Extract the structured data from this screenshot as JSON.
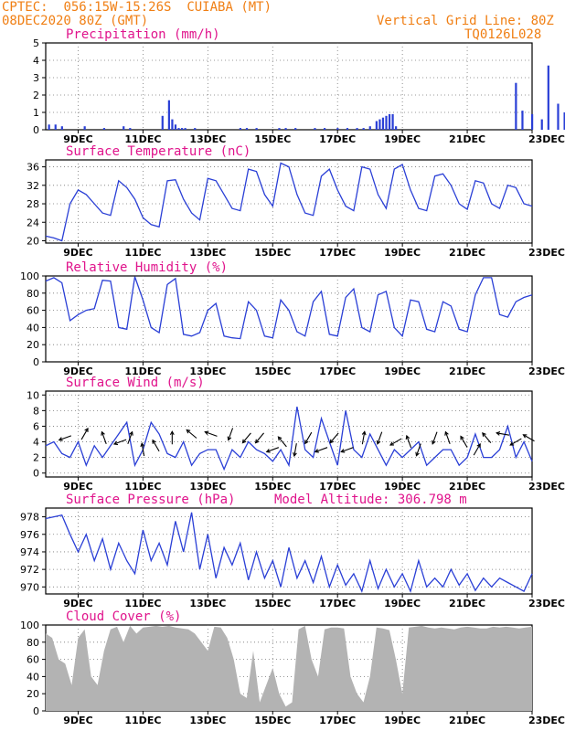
{
  "header": {
    "source": "CPTEC:",
    "location_coords": "056:15W-15:26S",
    "location_name": "CUIABA (MT)",
    "init_time": "08DEC2020 80Z (GMT)",
    "grid_note": "Vertical Grid Line: 80Z",
    "model_id": "TQ0126L028"
  },
  "colors": {
    "header": "#f07f14",
    "title": "#e0148c",
    "line": "#2a3fd6",
    "cloud": "#b3b3b3"
  },
  "chart_data": [
    {
      "id": "precip",
      "type": "bar",
      "title": "Precipitation (mm/h)",
      "ylim": [
        0,
        5
      ],
      "yticks": [
        "0",
        "1",
        "2",
        "3",
        "4",
        "5"
      ],
      "xticks": [
        "9DEC",
        "11DEC",
        "13DEC",
        "15DEC",
        "17DEC",
        "19DEC",
        "21DEC",
        "23DEC"
      ],
      "x": [
        0.1,
        0.3,
        0.5,
        1.2,
        1.8,
        2.4,
        2.6,
        3.6,
        3.8,
        3.9,
        4.0,
        4.1,
        4.2,
        4.3,
        4.6,
        6.0,
        6.2,
        6.5,
        7.2,
        7.4,
        7.7,
        8.3,
        8.6,
        9.0,
        9.3,
        9.6,
        9.8,
        10.0,
        10.2,
        10.3,
        10.4,
        10.5,
        10.6,
        10.7,
        10.8,
        14.5,
        14.7,
        15.0,
        15.3,
        15.5,
        15.8,
        16.0,
        16.2,
        16.5,
        16.8,
        17.0,
        17.2,
        17.5,
        17.8,
        18.0,
        18.2,
        18.5,
        18.8,
        19.2
      ],
      "values": [
        0.3,
        0.3,
        0.2,
        0.2,
        0.1,
        0.2,
        0.1,
        0.8,
        1.7,
        0.6,
        0.3,
        0.1,
        0.1,
        0.1,
        0.1,
        0.1,
        0.1,
        0.1,
        0.1,
        0.1,
        0.1,
        0.1,
        0.1,
        0.1,
        0.1,
        0.1,
        0.1,
        0.2,
        0.5,
        0.6,
        0.7,
        0.8,
        0.9,
        0.9,
        0.2,
        2.7,
        1.1,
        0.9,
        0.6,
        3.7,
        1.5,
        1.0,
        0.2,
        1.1,
        0.5,
        0.5,
        1.6,
        0.2,
        0.6,
        1.8,
        1.7,
        0.9,
        0.3,
        0.3
      ]
    },
    {
      "id": "temp",
      "type": "line",
      "title": "Surface Temperature (nC)",
      "ylim": [
        19.5,
        37.5
      ],
      "yticks": [
        "20",
        "24",
        "28",
        "32",
        "36"
      ],
      "xticks": [
        "9DEC",
        "11DEC",
        "13DEC",
        "15DEC",
        "17DEC",
        "19DEC",
        "21DEC",
        "23DEC"
      ],
      "x": [
        0,
        0.25,
        0.5,
        0.75,
        1.0,
        1.25,
        1.5,
        1.75,
        2.0,
        2.25,
        2.5,
        2.75,
        3.0,
        3.25,
        3.5,
        3.75,
        4.0,
        4.25,
        4.5,
        4.75,
        5.0,
        5.25,
        5.5,
        5.75,
        6.0,
        6.25,
        6.5,
        6.75,
        7.0,
        7.25,
        7.5,
        7.75,
        8.0,
        8.25,
        8.5,
        8.75,
        9.0,
        9.25,
        9.5,
        9.75,
        10.0,
        10.25,
        10.5,
        10.75,
        11.0,
        11.25,
        11.5,
        11.75,
        12.0,
        12.25,
        12.5,
        12.75,
        13.0,
        13.25,
        13.5,
        13.75,
        14.0,
        14.25,
        14.5,
        14.75,
        15.0
      ],
      "values": [
        21,
        20.6,
        20,
        28,
        31,
        30,
        28,
        26,
        25.5,
        33,
        31.5,
        29,
        25,
        23.5,
        23,
        33,
        33.2,
        29,
        26,
        24.5,
        33.5,
        33,
        30,
        27,
        26.5,
        35.5,
        35,
        30,
        27.5,
        36.8,
        36,
        30,
        26,
        25.5,
        34,
        35.5,
        31,
        27.5,
        26.5,
        36,
        35.5,
        30,
        27,
        35.5,
        36.5,
        31,
        27,
        26.5,
        34,
        34.5,
        32,
        28,
        26.8,
        33,
        32.5,
        28,
        27,
        32,
        31.5,
        28,
        27.5
      ]
    },
    {
      "id": "rh",
      "type": "line",
      "title": "Relative Humidity (%)",
      "ylim": [
        0,
        100
      ],
      "yticks": [
        "0",
        "20",
        "40",
        "60",
        "80",
        "100"
      ],
      "xticks": [
        "9DEC",
        "11DEC",
        "13DEC",
        "15DEC",
        "17DEC",
        "19DEC",
        "21DEC",
        "23DEC"
      ],
      "x": [
        0,
        0.25,
        0.5,
        0.75,
        1.0,
        1.25,
        1.5,
        1.75,
        2.0,
        2.25,
        2.5,
        2.75,
        3.0,
        3.25,
        3.5,
        3.75,
        4.0,
        4.25,
        4.5,
        4.75,
        5.0,
        5.25,
        5.5,
        5.75,
        6.0,
        6.25,
        6.5,
        6.75,
        7.0,
        7.25,
        7.5,
        7.75,
        8.0,
        8.25,
        8.5,
        8.75,
        9.0,
        9.25,
        9.5,
        9.75,
        10.0,
        10.25,
        10.5,
        10.75,
        11.0,
        11.25,
        11.5,
        11.75,
        12.0,
        12.25,
        12.5,
        12.75,
        13.0,
        13.25,
        13.5,
        13.75,
        14.0,
        14.25,
        14.5,
        14.75,
        15.0
      ],
      "values": [
        94,
        98,
        92,
        48,
        55,
        60,
        62,
        95,
        94,
        40,
        38,
        99,
        72,
        40,
        34,
        90,
        97,
        32,
        30,
        34,
        60,
        68,
        30,
        28,
        27,
        70,
        60,
        30,
        28,
        72,
        60,
        35,
        30,
        70,
        82,
        32,
        30,
        75,
        85,
        40,
        35,
        78,
        82,
        40,
        30,
        72,
        70,
        38,
        35,
        70,
        65,
        38,
        35,
        78,
        98,
        98,
        55,
        52,
        70,
        75,
        78
      ]
    },
    {
      "id": "wind",
      "type": "line",
      "title": "Surface Wind (m/s)",
      "ylim": [
        -0.5,
        10.5
      ],
      "yticks": [
        "0",
        "2",
        "4",
        "6",
        "8",
        "10"
      ],
      "xticks": [
        "9DEC",
        "11DEC",
        "13DEC",
        "15DEC",
        "17DEC",
        "19DEC",
        "21DEC",
        "23DEC"
      ],
      "x": [
        0,
        0.25,
        0.5,
        0.75,
        1.0,
        1.25,
        1.5,
        1.75,
        2.0,
        2.25,
        2.5,
        2.75,
        3.0,
        3.25,
        3.5,
        3.75,
        4.0,
        4.25,
        4.5,
        4.75,
        5.0,
        5.25,
        5.5,
        5.75,
        6.0,
        6.25,
        6.5,
        6.75,
        7.0,
        7.25,
        7.5,
        7.75,
        8.0,
        8.25,
        8.5,
        8.75,
        9.0,
        9.25,
        9.5,
        9.75,
        10.0,
        10.25,
        10.5,
        10.75,
        11.0,
        11.25,
        11.5,
        11.75,
        12.0,
        12.25,
        12.5,
        12.75,
        13.0,
        13.25,
        13.5,
        13.75,
        14.0,
        14.25,
        14.5,
        14.75,
        15.0
      ],
      "values": [
        3.5,
        4,
        2.5,
        2,
        4,
        1,
        3.5,
        2,
        3.5,
        5,
        6.5,
        1,
        3,
        6.5,
        5,
        2.5,
        2,
        4,
        1,
        2.5,
        3,
        3,
        0.5,
        3,
        2,
        4,
        3,
        2.5,
        1.5,
        3,
        1,
        8.5,
        3,
        2,
        7,
        4,
        1,
        8,
        3,
        2,
        5,
        3,
        1,
        3,
        2,
        3,
        4,
        1,
        2,
        3,
        3,
        1,
        2,
        5,
        2,
        2,
        3,
        6,
        2,
        4,
        1.5
      ]
    },
    {
      "id": "wind_arrows",
      "type": "scatter",
      "x": [
        0.6,
        1.2,
        1.8,
        2.3,
        2.6,
        3.0,
        3.4,
        3.9,
        4.5,
        5.1,
        5.7,
        6.2,
        6.6,
        7.0,
        7.3,
        7.7,
        8.1,
        8.5,
        8.9,
        9.3,
        9.8,
        10.3,
        10.8,
        11.2,
        11.5,
        12.0,
        12.4,
        12.9,
        13.3,
        13.6,
        14.1,
        14.5,
        14.9
      ],
      "values": [
        4.5,
        5,
        4.5,
        4,
        4.5,
        3,
        3.5,
        4.5,
        5,
        5,
        5,
        4.5,
        4.5,
        3,
        4,
        3,
        4.5,
        3,
        4.5,
        3,
        4.5,
        4.5,
        4,
        4,
        3,
        4.5,
        4.5,
        4,
        3,
        4.5,
        5,
        4,
        4.5
      ],
      "direction_deg": [
        200,
        60,
        110,
        200,
        70,
        100,
        120,
        90,
        140,
        160,
        250,
        230,
        230,
        200,
        130,
        260,
        240,
        200,
        230,
        200,
        80,
        250,
        210,
        110,
        250,
        250,
        110,
        120,
        60,
        130,
        170,
        210,
        150
      ]
    },
    {
      "id": "pressure",
      "type": "line",
      "title": "Surface Pressure (hPa)",
      "annotation": "Model Altitude: 306.798 m",
      "ylim": [
        969.2,
        979
      ],
      "yticks": [
        "970",
        "972",
        "974",
        "976",
        "978"
      ],
      "xticks": [
        "9DEC",
        "11DEC",
        "13DEC",
        "15DEC",
        "17DEC",
        "19DEC",
        "21DEC",
        "23DEC"
      ],
      "x": [
        0,
        0.25,
        0.5,
        0.75,
        1.0,
        1.25,
        1.5,
        1.75,
        2.0,
        2.25,
        2.5,
        2.75,
        3.0,
        3.25,
        3.5,
        3.75,
        4.0,
        4.25,
        4.5,
        4.75,
        5.0,
        5.25,
        5.5,
        5.75,
        6.0,
        6.25,
        6.5,
        6.75,
        7.0,
        7.25,
        7.5,
        7.75,
        8.0,
        8.25,
        8.5,
        8.75,
        9.0,
        9.25,
        9.5,
        9.75,
        10.0,
        10.25,
        10.5,
        10.75,
        11.0,
        11.25,
        11.5,
        11.75,
        12.0,
        12.25,
        12.5,
        12.75,
        13.0,
        13.25,
        13.5,
        13.75,
        14.0,
        14.25,
        14.5,
        14.75,
        15.0
      ],
      "values": [
        977.8,
        978,
        978.2,
        976,
        974,
        976,
        973,
        975.5,
        972,
        975,
        973,
        971.5,
        976.5,
        973,
        975,
        972.5,
        977.5,
        974,
        978.5,
        972,
        976,
        971,
        974.5,
        972.5,
        975,
        970.8,
        974,
        971,
        973,
        970,
        974.5,
        971,
        973,
        970.5,
        973.5,
        970,
        972.5,
        970.2,
        971.5,
        969.5,
        973,
        969.8,
        972,
        970,
        971.5,
        969.5,
        973,
        970,
        971,
        970,
        972,
        970.2,
        971.5,
        969.6,
        971,
        970,
        971,
        970.5,
        970,
        969.5,
        971.5
      ]
    },
    {
      "id": "cloud",
      "type": "area",
      "title": "Cloud Cover (%)",
      "ylim": [
        0,
        100
      ],
      "yticks": [
        "0",
        "20",
        "40",
        "60",
        "80",
        "100"
      ],
      "xticks": [
        "9DEC",
        "11DEC",
        "13DEC",
        "15DEC",
        "17DEC",
        "19DEC",
        "21DEC",
        "23DEC"
      ],
      "x": [
        0,
        0.2,
        0.4,
        0.6,
        0.8,
        1.0,
        1.2,
        1.4,
        1.6,
        1.8,
        2.0,
        2.2,
        2.4,
        2.6,
        2.8,
        3.0,
        3.2,
        3.4,
        3.6,
        3.8,
        4.0,
        4.2,
        4.4,
        4.6,
        4.8,
        5.0,
        5.2,
        5.4,
        5.6,
        5.8,
        6.0,
        6.2,
        6.4,
        6.6,
        6.8,
        7.0,
        7.2,
        7.4,
        7.6,
        7.8,
        8.0,
        8.2,
        8.4,
        8.6,
        8.8,
        9.0,
        9.2,
        9.4,
        9.6,
        9.8,
        10.0,
        10.2,
        10.4,
        10.6,
        10.8,
        11.0,
        11.2,
        11.4,
        11.6,
        11.8,
        12.0,
        12.2,
        12.4,
        12.6,
        12.8,
        13.0,
        13.2,
        13.4,
        13.6,
        13.8,
        14.0,
        14.2,
        14.4,
        14.6,
        14.8,
        15.0
      ],
      "values": [
        90,
        85,
        60,
        55,
        30,
        85,
        95,
        40,
        30,
        70,
        95,
        98,
        80,
        99,
        90,
        97,
        98,
        99,
        98,
        99,
        97,
        96,
        95,
        90,
        80,
        70,
        98,
        97,
        85,
        60,
        20,
        15,
        70,
        10,
        30,
        50,
        20,
        5,
        10,
        95,
        99,
        60,
        40,
        95,
        97,
        97,
        96,
        40,
        20,
        10,
        40,
        97,
        96,
        94,
        60,
        20,
        97,
        98,
        99,
        97,
        96,
        97,
        96,
        95,
        97,
        98,
        97,
        96,
        96,
        98,
        97,
        98,
        97,
        96,
        97,
        98
      ]
    }
  ]
}
